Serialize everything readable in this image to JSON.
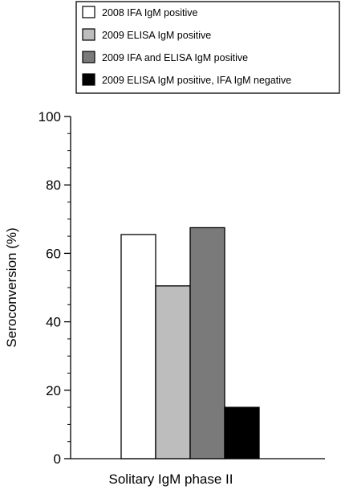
{
  "chart_data": {
    "type": "bar",
    "categories": [
      "Solitary IgM phase II"
    ],
    "series": [
      {
        "name": "2008 IFA IgM positive",
        "values": [
          65.5
        ],
        "color": "#ffffff"
      },
      {
        "name": "2009 ELISA IgM positive",
        "values": [
          50.5
        ],
        "color": "#bdbdbd"
      },
      {
        "name": "2009 IFA and ELISA IgM positive",
        "values": [
          67.5
        ],
        "color": "#7a7a7a"
      },
      {
        "name": "2009 ELISA IgM positive, IFA IgM negative",
        "values": [
          15
        ],
        "color": "#000000"
      }
    ],
    "title": "",
    "xlabel": "",
    "ylabel": "Seroconversion (%)",
    "ylim": [
      0,
      100
    ],
    "yticks": [
      0,
      20,
      40,
      60,
      80,
      100
    ],
    "grid": false,
    "legend_position": "top"
  }
}
